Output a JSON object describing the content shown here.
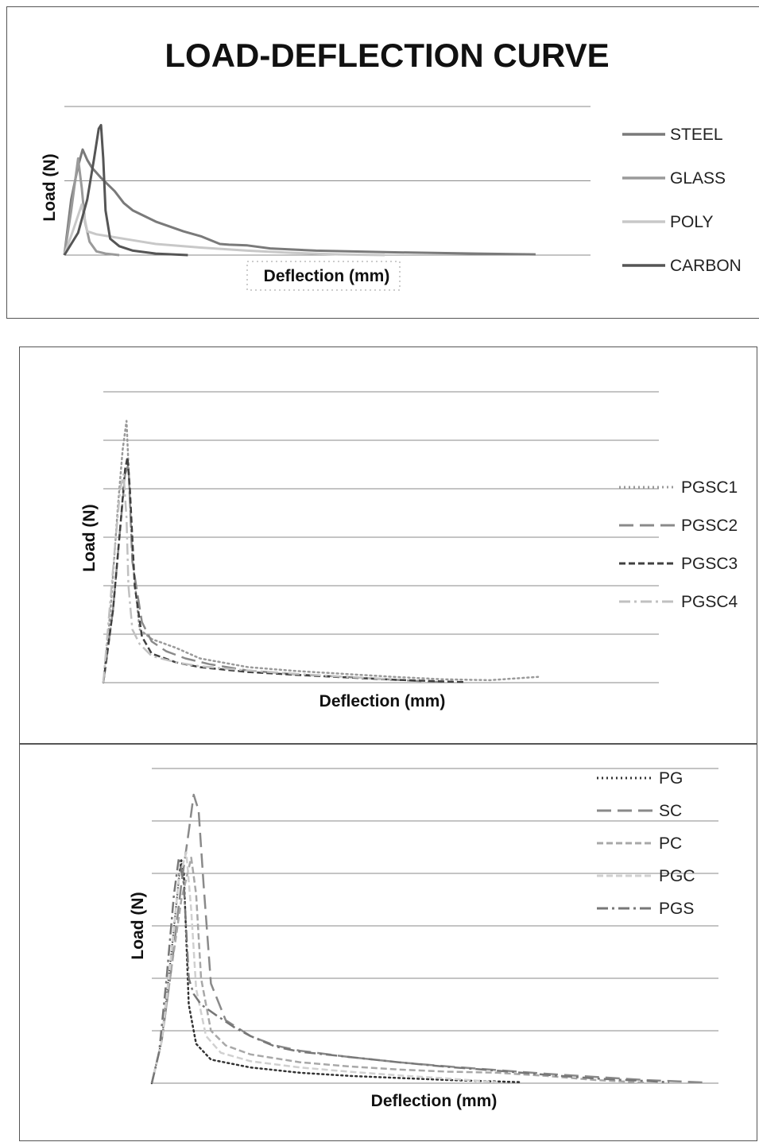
{
  "chart_data": [
    {
      "type": "line",
      "title": "LOAD-DEFLECTION CURVE",
      "xlabel": "Deflection (mm)",
      "ylabel": "Load (N)",
      "ylim": [
        0,
        2
      ],
      "xlim": [
        0,
        11.5
      ],
      "grid": true,
      "legend_position": "right",
      "series": [
        {
          "name": "STEEL",
          "color": "#7a7a7a",
          "dash": "solid",
          "x": [
            0,
            0.15,
            0.3,
            0.4,
            0.5,
            0.6,
            0.8,
            1.1,
            1.3,
            1.5,
            2.0,
            2.6,
            3.0,
            3.4,
            3.6,
            4.0,
            4.5,
            5.5,
            7.0,
            9.0,
            10.3
          ],
          "y": [
            0,
            0.75,
            1.2,
            1.42,
            1.28,
            1.18,
            1.04,
            0.86,
            0.7,
            0.6,
            0.45,
            0.32,
            0.25,
            0.15,
            0.14,
            0.13,
            0.09,
            0.06,
            0.04,
            0.02,
            0.01
          ]
        },
        {
          "name": "GLASS",
          "color": "#9a9a9a",
          "dash": "solid",
          "x": [
            0,
            0.15,
            0.3,
            0.38,
            0.45,
            0.55,
            0.7,
            0.9,
            1.2
          ],
          "y": [
            0,
            0.6,
            1.3,
            0.9,
            0.45,
            0.18,
            0.05,
            0.02,
            0
          ]
        },
        {
          "name": "POLY",
          "color": "#c8c8c8",
          "dash": "solid",
          "x": [
            0,
            0.2,
            0.38,
            0.5,
            0.7,
            1.0,
            1.5,
            2.0,
            3.0,
            4.0,
            5.0,
            6.0,
            7.0
          ],
          "y": [
            0,
            0.35,
            0.68,
            0.32,
            0.28,
            0.25,
            0.2,
            0.15,
            0.1,
            0.06,
            0.03,
            0.01,
            0
          ]
        },
        {
          "name": "CARBON",
          "color": "#555555",
          "dash": "solid",
          "x": [
            0,
            0.3,
            0.5,
            0.65,
            0.75,
            0.8,
            0.85,
            0.9,
            1.0,
            1.2,
            1.5,
            2.0,
            2.7
          ],
          "y": [
            0,
            0.3,
            0.75,
            1.3,
            1.7,
            1.75,
            1.3,
            0.6,
            0.22,
            0.12,
            0.06,
            0.02,
            0
          ]
        }
      ]
    },
    {
      "type": "line",
      "title": "",
      "xlabel": "Deflection (mm)",
      "ylabel": "Load (N)",
      "ylim": [
        0,
        6
      ],
      "xlim": [
        0,
        11.5
      ],
      "grid": true,
      "legend_position": "right",
      "series": [
        {
          "name": "PGSC1",
          "color": "#9a9a9a",
          "dash": "dot",
          "x": [
            0,
            0.15,
            0.3,
            0.4,
            0.48,
            0.52,
            0.6,
            0.75,
            1.0,
            1.5,
            2.0,
            3.0,
            4.0,
            5.0,
            6.0,
            7.0,
            8.0,
            9.0
          ],
          "y": [
            0,
            1.5,
            3.6,
            4.8,
            5.4,
            4.5,
            2.6,
            1.1,
            0.9,
            0.72,
            0.5,
            0.32,
            0.24,
            0.18,
            0.12,
            0.07,
            0.05,
            0.12
          ]
        },
        {
          "name": "PGSC2",
          "color": "#8a8a8a",
          "dash": "longdash",
          "x": [
            0,
            0.2,
            0.35,
            0.45,
            0.52,
            0.6,
            0.8,
            1.0,
            1.3,
            1.7,
            2.2,
            3.0,
            4.0,
            5.0,
            6.0,
            7.0
          ],
          "y": [
            0,
            1.5,
            3.2,
            4.3,
            4.5,
            2.5,
            1.25,
            0.85,
            0.65,
            0.5,
            0.38,
            0.25,
            0.17,
            0.12,
            0.06,
            0.01
          ]
        },
        {
          "name": "PGSC3",
          "color": "#404040",
          "dash": "dash",
          "x": [
            0,
            0.2,
            0.35,
            0.45,
            0.5,
            0.55,
            0.65,
            0.8,
            1.0,
            1.5,
            2.0,
            3.0,
            4.0,
            5.0,
            6.0,
            7.5
          ],
          "y": [
            0,
            1.5,
            3.2,
            4.4,
            4.65,
            4.0,
            2.0,
            0.95,
            0.6,
            0.42,
            0.32,
            0.22,
            0.16,
            0.11,
            0.06,
            0.01
          ]
        },
        {
          "name": "PGSC4",
          "color": "#c0c0c0",
          "dash": "dashdot",
          "x": [
            0,
            0.12,
            0.25,
            0.35,
            0.42,
            0.48,
            0.52,
            0.6,
            0.75,
            1.0,
            1.5,
            2.0,
            3.0,
            4.0,
            5.0,
            6.0
          ],
          "y": [
            0,
            1.4,
            2.9,
            4.0,
            4.3,
            3.4,
            2.0,
            1.1,
            0.8,
            0.55,
            0.42,
            0.34,
            0.25,
            0.18,
            0.12,
            0.07
          ]
        }
      ]
    },
    {
      "type": "line",
      "title": "",
      "xlabel": "Deflection (mm)",
      "ylabel": "Load (N)",
      "ylim": [
        0,
        6
      ],
      "xlim": [
        0,
        11.5
      ],
      "grid": true,
      "legend_position": "top-right",
      "series": [
        {
          "name": "PG",
          "color": "#333333",
          "dash": "dot",
          "x": [
            0,
            0.2,
            0.4,
            0.55,
            0.6,
            0.65,
            0.75,
            0.9,
            1.2,
            2.0,
            3.0,
            4.0,
            5.0,
            6.0,
            7.5
          ],
          "y": [
            0,
            0.8,
            2.5,
            3.9,
            4.25,
            4.0,
            1.5,
            0.75,
            0.45,
            0.3,
            0.2,
            0.14,
            0.1,
            0.06,
            0.02
          ]
        },
        {
          "name": "SC",
          "color": "#8a8a8a",
          "dash": "longdash",
          "x": [
            0,
            0.2,
            0.4,
            0.6,
            0.75,
            0.85,
            0.95,
            1.05,
            1.2,
            1.5,
            2.0,
            2.5,
            3.0,
            4.0,
            5.0,
            6.0,
            7.0,
            8.0,
            9.0,
            10.0,
            11.3
          ],
          "y": [
            0,
            0.8,
            2.2,
            3.8,
            4.8,
            5.5,
            5.2,
            3.8,
            1.9,
            1.2,
            0.9,
            0.72,
            0.62,
            0.5,
            0.4,
            0.32,
            0.25,
            0.18,
            0.12,
            0.06,
            0.01
          ]
        },
        {
          "name": "PC",
          "color": "#a8a8a8",
          "dash": "dash",
          "x": [
            0,
            0.2,
            0.4,
            0.6,
            0.8,
            0.9,
            1.0,
            1.2,
            1.5,
            2.0,
            3.0,
            4.0,
            5.0,
            6.0,
            7.0,
            8.0,
            9.0,
            10.0
          ],
          "y": [
            0,
            0.8,
            2.2,
            3.5,
            4.3,
            3.6,
            2.0,
            1.0,
            0.72,
            0.55,
            0.4,
            0.32,
            0.26,
            0.22,
            0.2,
            0.14,
            0.06,
            0.01
          ]
        },
        {
          "name": "PGC",
          "color": "#d0d0d0",
          "dash": "dash",
          "x": [
            0,
            0.2,
            0.4,
            0.55,
            0.7,
            0.8,
            0.9,
            1.1,
            1.4,
            2.0,
            3.0,
            4.0,
            5.0,
            6.0,
            7.0
          ],
          "y": [
            0,
            0.8,
            2.5,
            3.9,
            4.4,
            3.3,
            1.8,
            0.9,
            0.58,
            0.42,
            0.3,
            0.22,
            0.15,
            0.09,
            0.02
          ]
        },
        {
          "name": "PGS",
          "color": "#777777",
          "dash": "dashdot",
          "x": [
            0,
            0.15,
            0.3,
            0.45,
            0.55,
            0.65,
            0.75,
            0.85,
            1.0,
            1.3,
            1.7,
            2.0,
            2.5,
            3.0,
            4.0,
            5.0,
            6.0,
            7.0,
            8.0,
            9.0,
            10.5
          ],
          "y": [
            0,
            0.6,
            2.0,
            3.6,
            4.3,
            3.8,
            2.0,
            1.7,
            1.5,
            1.3,
            1.05,
            0.9,
            0.7,
            0.6,
            0.5,
            0.4,
            0.31,
            0.24,
            0.16,
            0.09,
            0.02
          ]
        }
      ]
    }
  ]
}
